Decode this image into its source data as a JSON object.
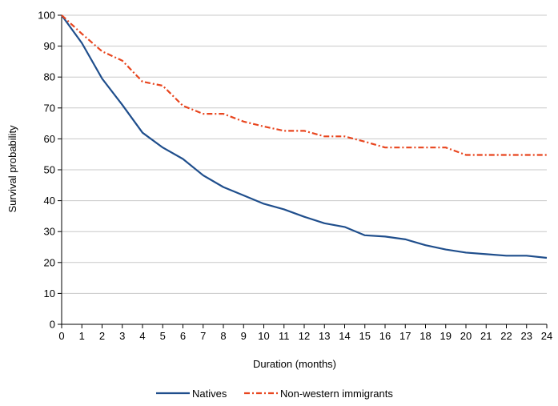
{
  "chart_data": {
    "type": "line",
    "title": "",
    "xlabel": "Duration (months)",
    "ylabel": "Survival probability",
    "x": [
      0,
      1,
      2,
      3,
      4,
      5,
      6,
      7,
      8,
      9,
      10,
      11,
      12,
      13,
      14,
      15,
      16,
      17,
      18,
      19,
      20,
      21,
      22,
      23,
      24
    ],
    "xlim": [
      0,
      24
    ],
    "ylim": [
      0,
      100
    ],
    "yticks": [
      0,
      10,
      20,
      30,
      40,
      50,
      60,
      70,
      80,
      90,
      100
    ],
    "grid": "horizontal",
    "legend": "bottom",
    "series": [
      {
        "name": "Natives",
        "color": "#1f4e8c",
        "style": "solid",
        "values": [
          100,
          91,
          79.5,
          71,
          62,
          57.2,
          53.5,
          48.2,
          44.4,
          41.7,
          39,
          37.2,
          34.8,
          32.7,
          31.5,
          28.8,
          28.4,
          27.5,
          25.6,
          24.2,
          23.2,
          22.7,
          22.2,
          22.2,
          21.5
        ]
      },
      {
        "name": "Non-western immigrants",
        "color": "#e8451e",
        "style": "dashdot",
        "values": [
          100,
          94,
          88.3,
          85.3,
          78.5,
          77.2,
          70.7,
          68.1,
          68.1,
          65.6,
          64,
          62.6,
          62.6,
          60.8,
          60.8,
          59.1,
          57.2,
          57.2,
          57.2,
          57.2,
          54.8,
          54.8,
          54.8,
          54.8,
          54.8
        ]
      }
    ]
  }
}
